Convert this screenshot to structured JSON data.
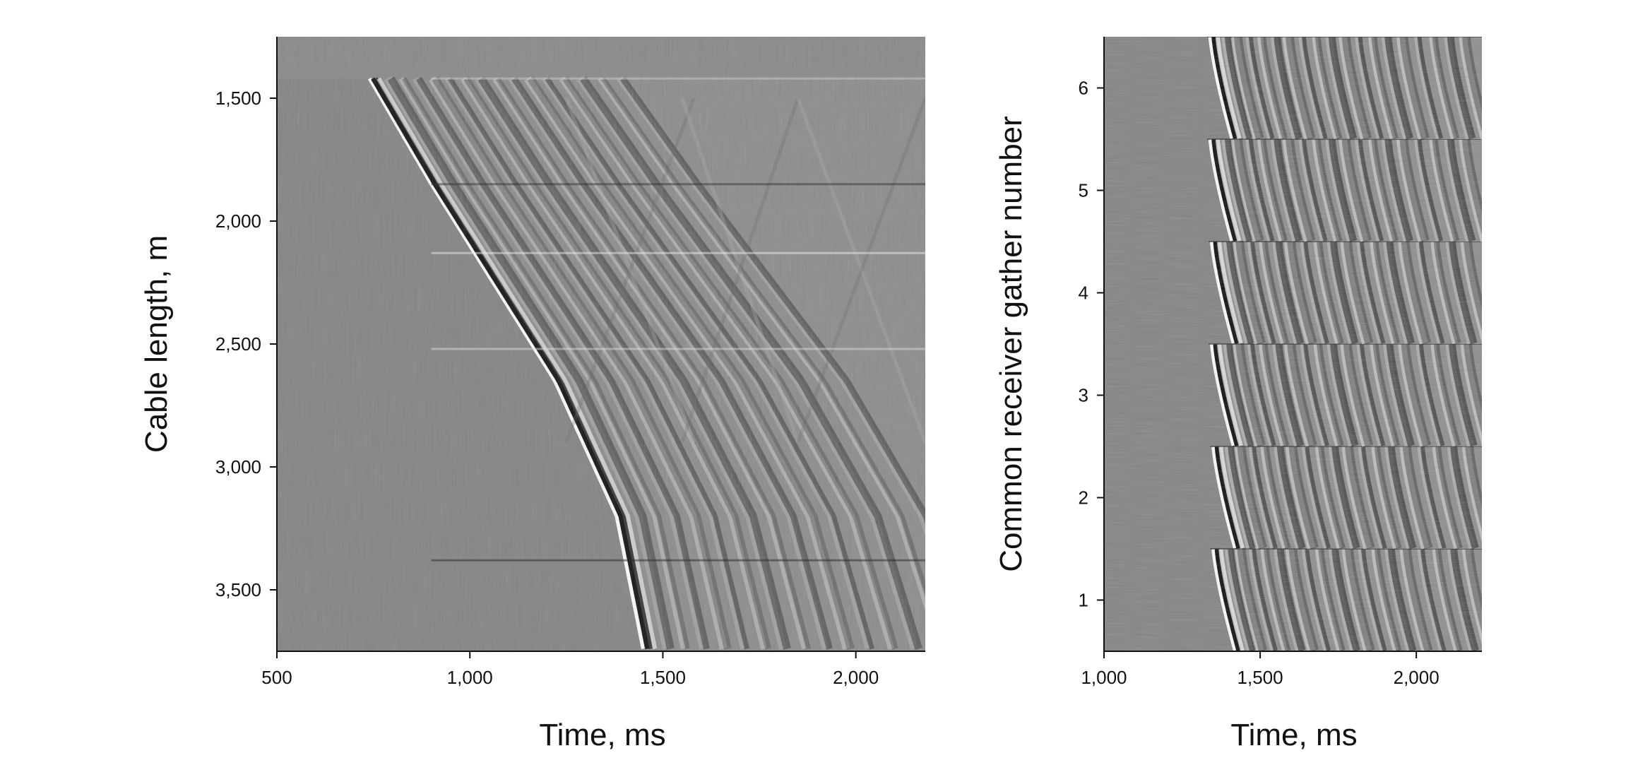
{
  "chart_data": [
    {
      "type": "heatmap",
      "title": "",
      "xlabel": "Time, ms",
      "ylabel": "Cable length, m",
      "xlim": [
        500,
        2180
      ],
      "ylim": [
        3750,
        1250
      ],
      "x_ticks": [
        500,
        1000,
        1500,
        2000
      ],
      "x_tick_labels": [
        "500",
        "1,000",
        "1,500",
        "2,000"
      ],
      "y_ticks": [
        1500,
        2000,
        2500,
        3000,
        3500
      ],
      "y_tick_labels": [
        "1,500",
        "2,000",
        "2,500",
        "3,000",
        "3,500"
      ],
      "colormap": "grayscale",
      "first_break": {
        "x": [
          740,
          900,
          1060,
          1220,
          1380,
          1450
        ],
        "y": [
          1420,
          1850,
          2250,
          2650,
          3200,
          3750
        ]
      }
    },
    {
      "type": "heatmap",
      "title": "",
      "xlabel": "Time, ms",
      "ylabel": "Common receiver gather number",
      "xlim": [
        1000,
        2210
      ],
      "ylim": [
        0.5,
        6.5
      ],
      "x_ticks": [
        1000,
        1500,
        2000
      ],
      "x_tick_labels": [
        "1,000",
        "1,500",
        "2,000"
      ],
      "y_ticks": [
        1,
        2,
        3,
        4,
        5,
        6
      ],
      "y_tick_labels": [
        "1",
        "2",
        "3",
        "4",
        "5",
        "6"
      ],
      "colormap": "grayscale",
      "gathers": [
        1,
        2,
        3,
        4,
        5,
        6
      ],
      "gather_onset_ms": [
        1350,
        1350,
        1345,
        1345,
        1340,
        1340
      ]
    }
  ]
}
